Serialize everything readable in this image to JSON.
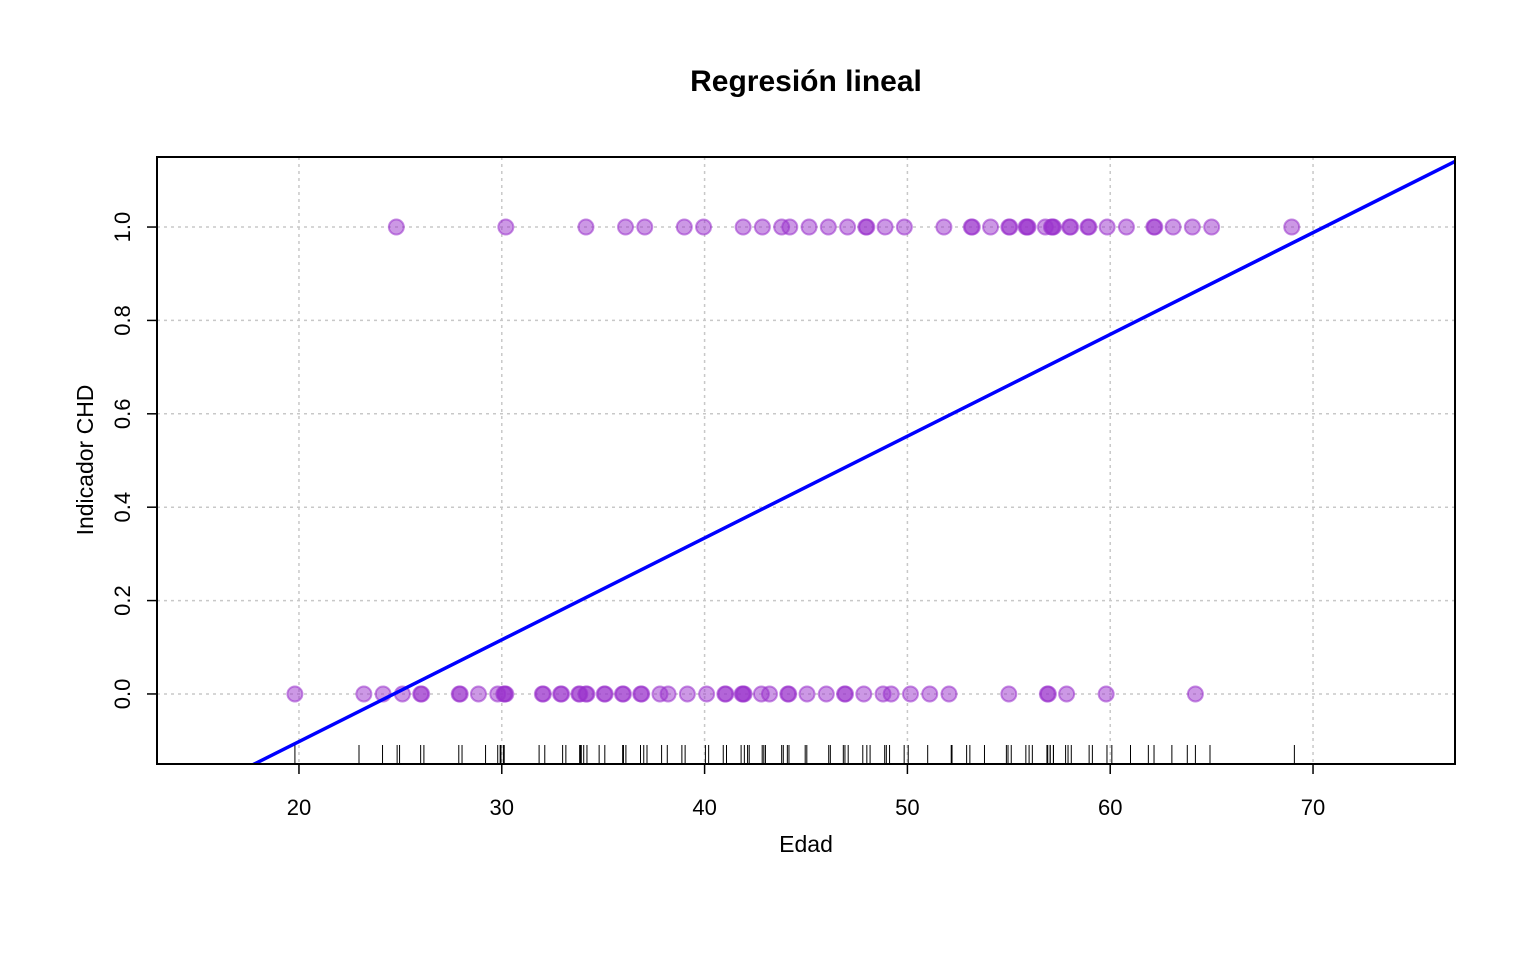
{
  "chart_data": {
    "type": "scatter",
    "title": "Regresión lineal",
    "xlabel": "Edad",
    "ylabel": "Indicador CHD",
    "xlim": [
      13,
      77
    ],
    "ylim": [
      -0.15,
      1.15
    ],
    "xticks": [
      "20",
      "30",
      "40",
      "50",
      "60",
      "70"
    ],
    "yticks": [
      "0.0",
      "0.2",
      "0.4",
      "0.6",
      "0.8",
      "1.0"
    ],
    "grid": true,
    "rug": true,
    "point_color": "#9932CC",
    "line_color": "#0000FF",
    "points_y1": [
      25,
      30,
      34,
      36,
      37,
      39,
      40,
      42,
      43,
      44,
      44,
      45,
      46,
      47,
      48,
      48,
      49,
      50,
      52,
      53,
      53,
      54,
      55,
      55,
      56,
      56,
      56,
      57,
      57,
      57,
      57,
      58,
      58,
      59,
      59,
      60,
      61,
      62,
      62,
      63,
      64,
      65,
      69
    ],
    "points_y0": [
      20,
      23,
      24,
      25,
      26,
      26,
      28,
      28,
      29,
      30,
      30,
      30,
      30,
      32,
      32,
      33,
      33,
      34,
      34,
      34,
      34,
      35,
      35,
      36,
      36,
      37,
      37,
      38,
      38,
      39,
      40,
      41,
      41,
      42,
      42,
      42,
      43,
      43,
      44,
      44,
      45,
      46,
      47,
      47,
      48,
      49,
      49,
      50,
      51,
      52,
      55,
      57,
      57,
      58,
      60,
      64
    ],
    "regression_line": {
      "intercept": -0.538,
      "slope": 0.0218
    }
  }
}
